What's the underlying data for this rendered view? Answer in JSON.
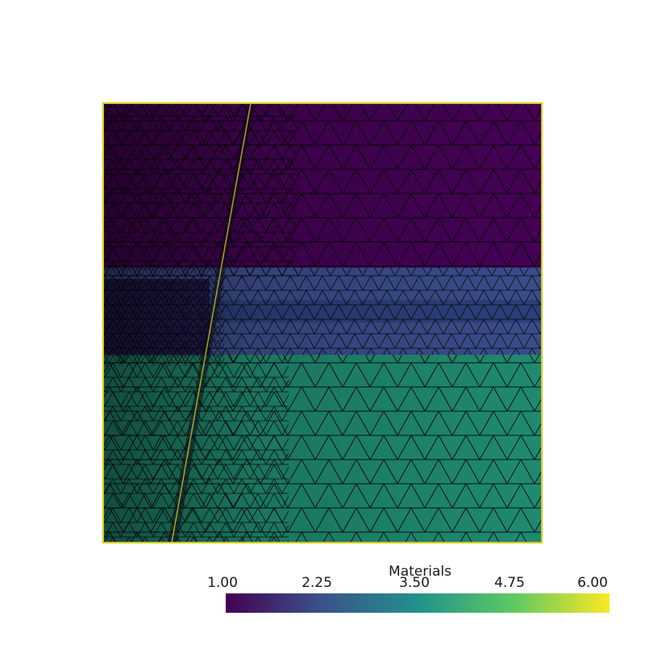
{
  "colorbar": {
    "title": "Materials",
    "ticks": [
      "1.00",
      "2.25",
      "3.50",
      "4.75",
      "6.00"
    ],
    "range": [
      1.0,
      6.0
    ],
    "colormap": [
      "#440154",
      "#3b528b",
      "#21918c",
      "#5ec962",
      "#fde725"
    ]
  },
  "mesh": {
    "materials": [
      {
        "id": 1,
        "color": "#440154"
      },
      {
        "id": 2,
        "color": "#3b4c8a"
      },
      {
        "id": 3,
        "color": "#2c3f7a"
      },
      {
        "id": 4,
        "color": "#1f9e89"
      },
      {
        "id": 5,
        "color": "#1f8a70"
      },
      {
        "id": 6,
        "color": "#fde725"
      }
    ],
    "edge_color": "#000000",
    "boundary_color": "#d4c81f"
  }
}
